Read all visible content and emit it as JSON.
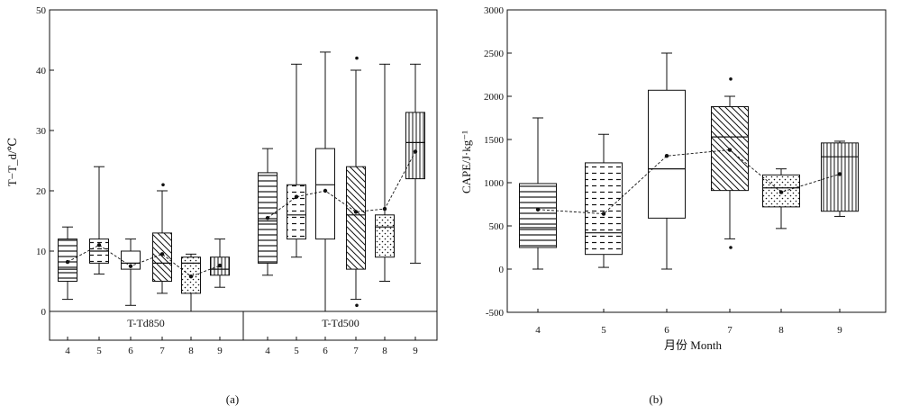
{
  "chart_data": [
    {
      "type": "box",
      "panel_label": "(a)",
      "ylabel": "T−T_d/℃",
      "ylim": [
        0,
        50
      ],
      "y_ticks": [
        0,
        10,
        20,
        30,
        40,
        50
      ],
      "x_tick_labels": [
        "4",
        "5",
        "6",
        "7",
        "8",
        "9",
        "4",
        "5",
        "6",
        "7",
        "8",
        "9"
      ],
      "groups": [
        {
          "name": "T-Td850",
          "boxes": [
            {
              "month": "4",
              "min": 2,
              "q1": 5,
              "median": 7,
              "q3": 12,
              "max": 14,
              "mean": 8.2,
              "pattern": "hlines"
            },
            {
              "month": "5",
              "min": 6.2,
              "q1": 8,
              "median": 10,
              "q3": 12,
              "max": 24,
              "mean": 11,
              "pattern": "hdash"
            },
            {
              "month": "6",
              "min": 1,
              "q1": 7,
              "median": 8,
              "q3": 10,
              "max": 12,
              "mean": 7.5,
              "pattern": "none"
            },
            {
              "month": "7",
              "min": 3,
              "q1": 5,
              "median": 8,
              "q3": 13,
              "max": 20,
              "mean": 9.5,
              "pattern": "diag",
              "outliers": [
                21
              ]
            },
            {
              "month": "8",
              "min": 0,
              "q1": 3,
              "median": 8,
              "q3": 9,
              "max": 9.5,
              "mean": 5.8,
              "pattern": "dots"
            },
            {
              "month": "9",
              "min": 4,
              "q1": 6,
              "median": 7,
              "q3": 9,
              "max": 12,
              "mean": 7.6,
              "pattern": "vlines"
            }
          ]
        },
        {
          "name": "T-Td500",
          "boxes": [
            {
              "month": "4",
              "min": 6,
              "q1": 8,
              "median": 15,
              "q3": 23,
              "max": 27,
              "mean": 15.5,
              "pattern": "hlines"
            },
            {
              "month": "5",
              "min": 9,
              "q1": 12,
              "median": 16,
              "q3": 21,
              "max": 41,
              "mean": 19,
              "pattern": "hdash"
            },
            {
              "month": "6",
              "min": 0,
              "q1": 12,
              "median": 21,
              "q3": 27,
              "max": 43,
              "mean": 20,
              "pattern": "none"
            },
            {
              "month": "7",
              "min": 2,
              "q1": 7,
              "median": 16,
              "q3": 24,
              "max": 40,
              "mean": 16.5,
              "pattern": "diag",
              "outliers": [
                42,
                1
              ]
            },
            {
              "month": "8",
              "min": 5,
              "q1": 9,
              "median": 14,
              "q3": 16,
              "max": 41,
              "mean": 17,
              "pattern": "dots"
            },
            {
              "month": "9",
              "min": 8,
              "q1": 22,
              "median": 28,
              "q3": 33,
              "max": 41,
              "mean": 26.5,
              "pattern": "vlines"
            }
          ]
        }
      ]
    },
    {
      "type": "box",
      "panel_label": "(b)",
      "ylabel": "CAPE/J·kg⁻¹",
      "xlabel": "月份 Month",
      "ylim": [
        -500,
        3000
      ],
      "y_ticks": [
        -500,
        0,
        500,
        1000,
        1500,
        2000,
        2500,
        3000
      ],
      "x_tick_labels": [
        "4",
        "5",
        "6",
        "7",
        "8",
        "9"
      ],
      "boxes": [
        {
          "month": "4",
          "min": 0,
          "q1": 250,
          "median": 480,
          "q3": 990,
          "max": 1750,
          "mean": 690,
          "pattern": "hlines"
        },
        {
          "month": "5",
          "min": 20,
          "q1": 170,
          "median": 420,
          "q3": 1230,
          "max": 1560,
          "mean": 640,
          "pattern": "hdash"
        },
        {
          "month": "6",
          "min": 0,
          "q1": 590,
          "median": 1160,
          "q3": 2070,
          "max": 2500,
          "mean": 1310,
          "pattern": "none"
        },
        {
          "month": "7",
          "min": 350,
          "q1": 910,
          "median": 1530,
          "q3": 1880,
          "max": 2000,
          "mean": 1380,
          "pattern": "diag",
          "outliers": [
            2200,
            250
          ]
        },
        {
          "month": "8",
          "min": 470,
          "q1": 720,
          "median": 940,
          "q3": 1090,
          "max": 1160,
          "mean": 890,
          "pattern": "dots"
        },
        {
          "month": "9",
          "min": 610,
          "q1": 670,
          "median": 1300,
          "q3": 1460,
          "max": 1480,
          "mean": 1100,
          "pattern": "vlines"
        }
      ]
    }
  ]
}
